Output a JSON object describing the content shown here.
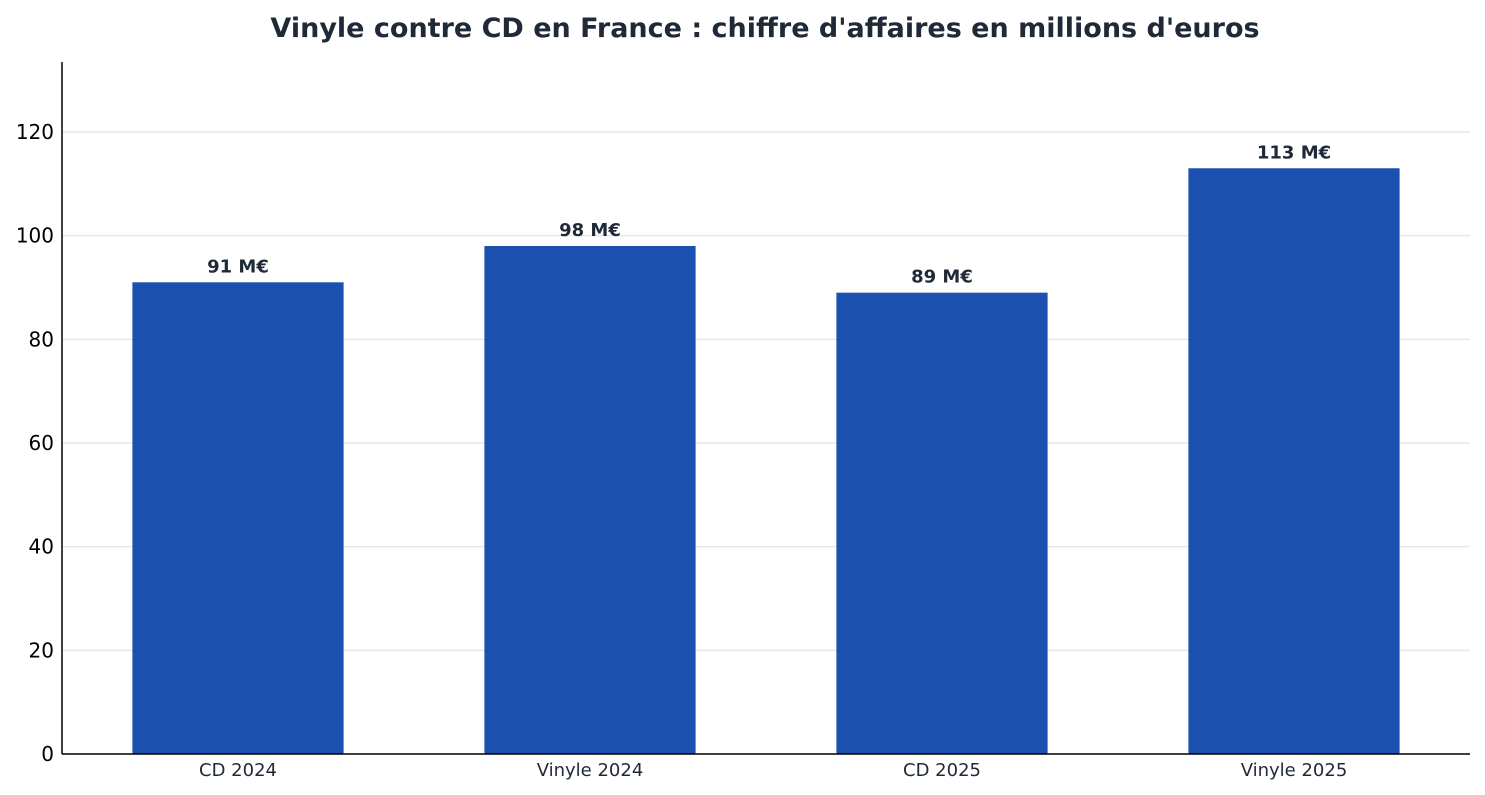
{
  "chart_data": {
    "type": "bar",
    "title": "Vinyle contre CD en France : chiffre d'affaires en millions d'euros",
    "xlabel": "",
    "ylabel": "",
    "categories": [
      "CD 2024",
      "Vinyle 2024",
      "CD 2025",
      "Vinyle 2025"
    ],
    "values": [
      91,
      98,
      89,
      113
    ],
    "data_labels": [
      "91 M€",
      "98 M€",
      "89 M€",
      "113 M€"
    ],
    "yticks": [
      0,
      20,
      40,
      60,
      80,
      100,
      120
    ],
    "ylim": [
      0,
      133.5
    ],
    "grid": "horizontal",
    "legend": "none",
    "colors": {
      "bar": "#1b4fb0",
      "title": "#1f2937",
      "grid": "#e5e7eb",
      "axis": "#000000"
    }
  }
}
